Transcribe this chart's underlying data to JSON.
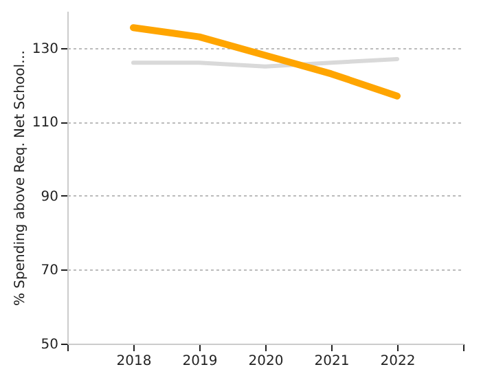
{
  "chart_data": {
    "type": "line",
    "ylabel": "% Spending above Req. Net School…",
    "x": [
      2018,
      2019,
      2020,
      2021,
      2022
    ],
    "xlim": [
      2017,
      2023
    ],
    "xticks": [
      {
        "value": 2017,
        "label": null
      },
      2018,
      2019,
      2020,
      2021,
      2022,
      {
        "value": 2023,
        "label": null
      }
    ],
    "ylim": [
      50,
      140
    ],
    "yticks": [
      50,
      70,
      90,
      110,
      130
    ],
    "grid": "y",
    "marker": "none",
    "line_style": "solid",
    "series": [
      {
        "color": "#d9d9d9",
        "values": [
          126,
          126,
          125,
          126,
          127
        ]
      },
      {
        "color": "#ffa500",
        "values": [
          135.5,
          133,
          128,
          123,
          117
        ]
      }
    ]
  }
}
